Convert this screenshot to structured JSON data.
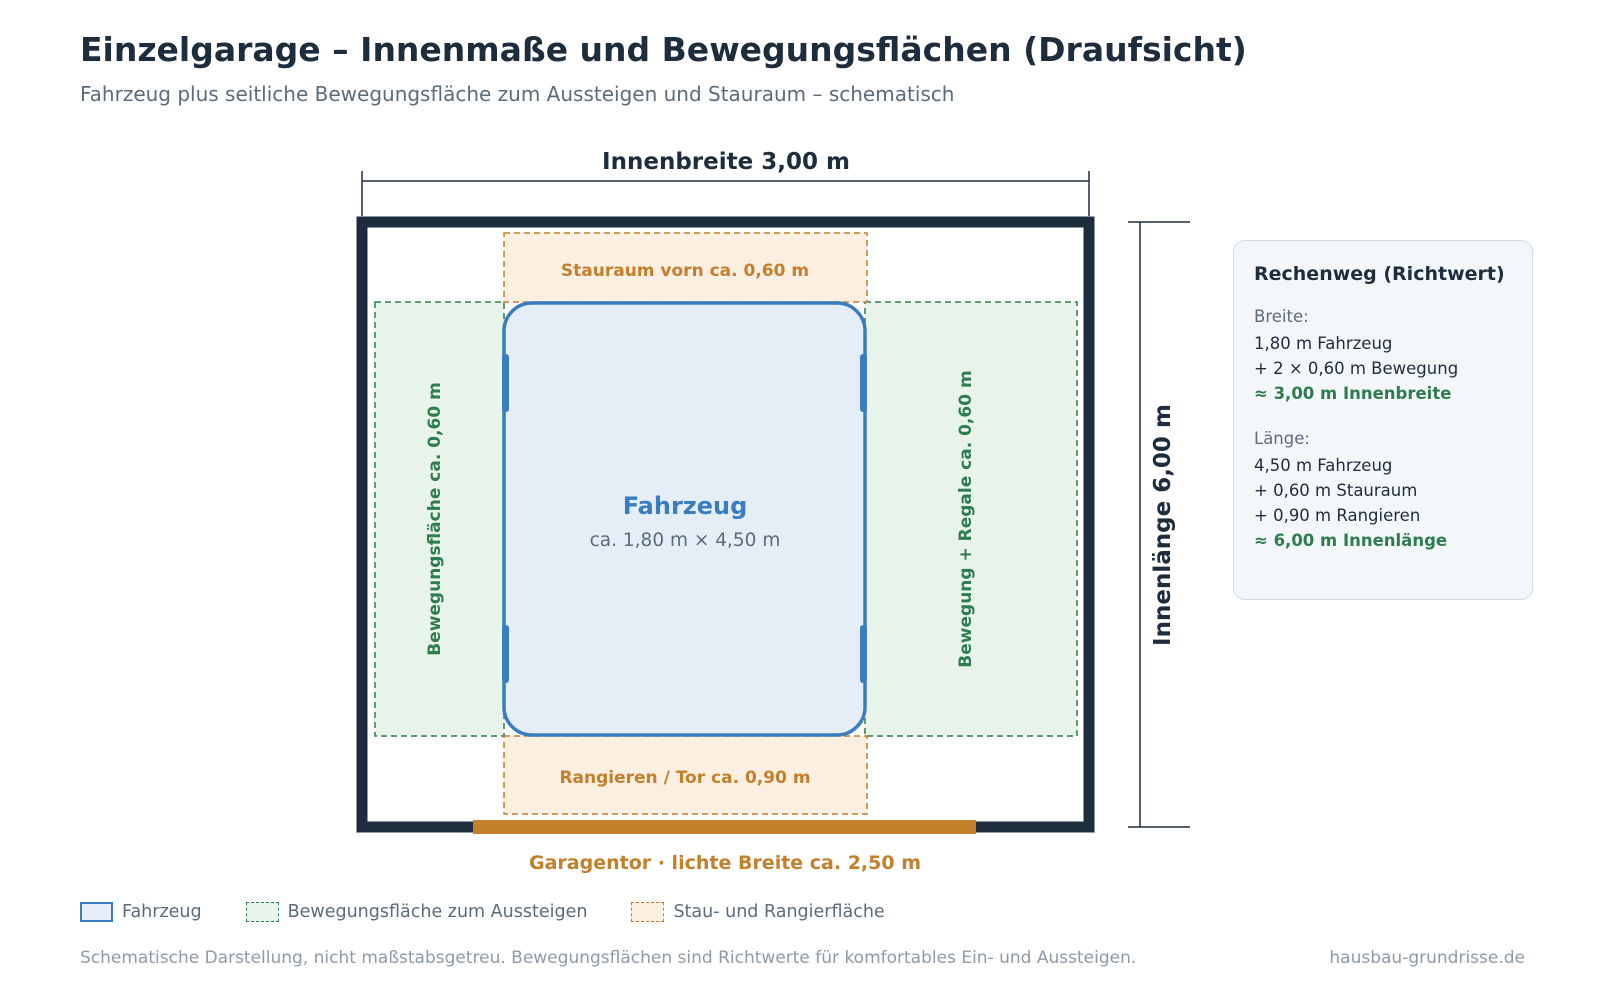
{
  "header": {
    "title": "Einzelgarage – Innenmaße und Bewegungsflächen (Draufsicht)",
    "subtitle": "Fahrzeug plus seitliche Bewegungsfläche zum Aussteigen und Stauraum – schematisch"
  },
  "diagram": {
    "width_label": "Innenbreite 3,00 m",
    "length_label": "Innenlänge 6,00 m",
    "front_storage_label": "Stauraum vorn ca. 0,60 m",
    "rear_maneuver_label": "Rangieren / Tor ca. 0,90 m",
    "left_zone_label": "Bewegungsfläche ca. 0,60 m",
    "right_zone_label": "Bewegung + Regale ca. 0,60 m",
    "vehicle_label": "Fahrzeug",
    "vehicle_size": "ca. 1,80 m × 4,50 m",
    "door_label": "Garagentor · lichte Breite ca. 2,50 m"
  },
  "calculation": {
    "title": "Rechenweg (Richtwert)",
    "width_heading": "Breite:",
    "width_lines": [
      "1,80 m Fahrzeug",
      "+ 2 × 0,60 m Bewegung"
    ],
    "width_result": "≈ 3,00 m Innenbreite",
    "length_heading": "Länge:",
    "length_lines": [
      "4,50 m Fahrzeug",
      "+ 0,60 m Stauraum",
      "+ 0,90 m Rangieren"
    ],
    "length_result": "≈ 6,00 m Innenlänge"
  },
  "legend": {
    "vehicle": "Fahrzeug",
    "movement": "Bewegungsfläche zum Aussteigen",
    "storage": "Stau- und Rangierfläche"
  },
  "footer": {
    "note": "Schematische Darstellung, nicht maßstabsgetreu. Bewegungsflächen sind Richtwerte für komfortables Ein- und Aussteigen.",
    "source": "hausbau-grundrisse.de"
  },
  "colors": {
    "wall": "#1e2d3d",
    "vehicle": "#3a7dbf",
    "movement": "#2e7d4f",
    "storage": "#c47f2a"
  }
}
